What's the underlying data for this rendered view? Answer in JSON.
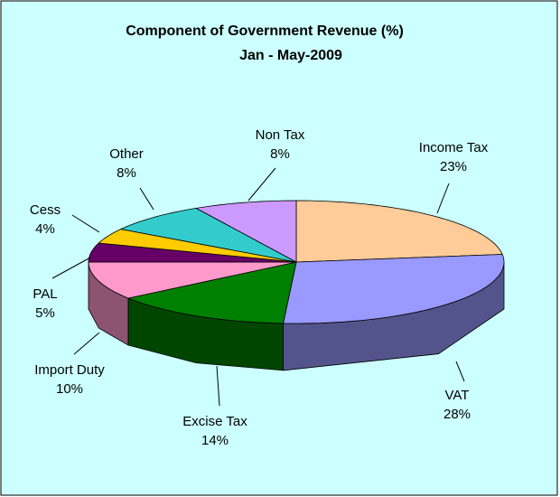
{
  "chart_data": {
    "type": "pie3d",
    "title": "Component of Government Revenue (%)",
    "subtitle": "Jan - May-2009",
    "categories": [
      "Income Tax",
      "VAT",
      "Excise Tax",
      "Import Duty",
      "PAL",
      "Cess",
      "Other",
      "Non Tax"
    ],
    "values": [
      23,
      28,
      14,
      10,
      5,
      4,
      8,
      8
    ],
    "value_labels": [
      "23%",
      "28%",
      "14%",
      "10%",
      "5%",
      "4%",
      "8%",
      "8%"
    ],
    "colors": [
      "#FFCC99",
      "#9999FF",
      "#008000",
      "#FF99CC",
      "#660066",
      "#FFCC00",
      "#33CCCC",
      "#CC99FF"
    ]
  }
}
